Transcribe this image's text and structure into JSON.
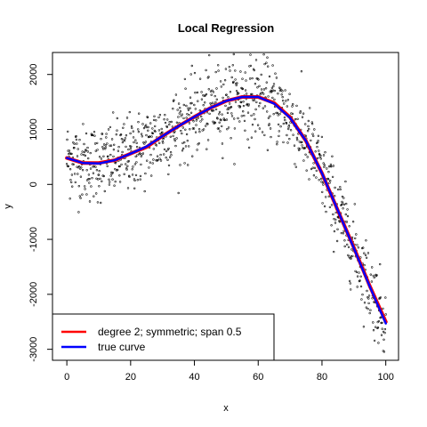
{
  "chart_data": {
    "type": "scatter",
    "title": "Local Regression",
    "xlabel": "x",
    "ylabel": "y",
    "xlim": [
      -4.5,
      104
    ],
    "ylim": [
      -3200,
      2400
    ],
    "xticks": [
      0,
      20,
      40,
      60,
      80,
      100
    ],
    "yticks": [
      -3000,
      -2000,
      -1000,
      0,
      1000,
      2000
    ],
    "grid": false,
    "legend_position": "bottom-left",
    "series": [
      {
        "name": "degree 2; symmetric; span 0.5",
        "kind": "line",
        "color": "#ff0000",
        "x": [
          0,
          5,
          10,
          15,
          20,
          25,
          30,
          35,
          40,
          45,
          50,
          55,
          60,
          65,
          70,
          75,
          80,
          85,
          90,
          95,
          100
        ],
        "y": [
          480,
          390,
          390,
          440,
          560,
          680,
          880,
          1060,
          1230,
          1390,
          1520,
          1590,
          1590,
          1480,
          1220,
          790,
          200,
          -480,
          -1150,
          -1850,
          -2500
        ]
      },
      {
        "name": "true curve",
        "kind": "line",
        "color": "#0000ff",
        "x": [
          0,
          5,
          10,
          15,
          20,
          25,
          30,
          35,
          40,
          45,
          50,
          55,
          60,
          65,
          70,
          75,
          80,
          85,
          90,
          95,
          100
        ],
        "y": [
          480,
          390,
          380,
          440,
          560,
          690,
          880,
          1060,
          1230,
          1390,
          1520,
          1590,
          1590,
          1470,
          1210,
          790,
          200,
          -480,
          -1160,
          -1860,
          -2530
        ]
      },
      {
        "name": "",
        "kind": "scatter",
        "n": 1000,
        "x_range": [
          0,
          100
        ],
        "noise_sd": 350,
        "color": "#000000"
      }
    ]
  }
}
